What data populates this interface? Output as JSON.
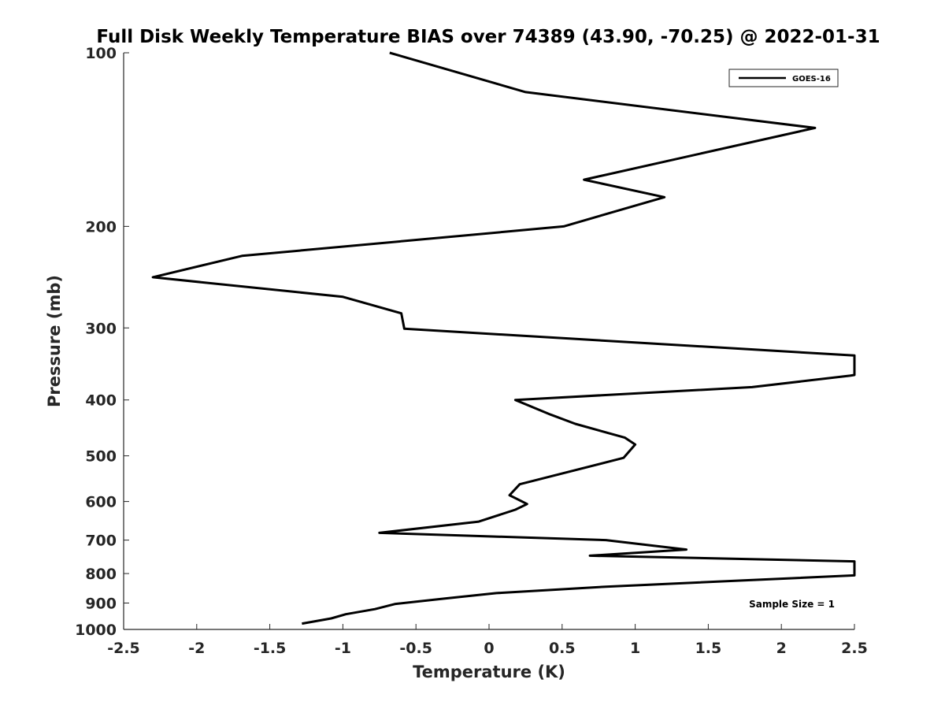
{
  "chart_data": {
    "type": "line",
    "title": "Full Disk Weekly Temperature BIAS over 74389 (43.90, -70.25) @ 2022-01-31",
    "xlabel": "Temperature (K)",
    "ylabel": "Pressure (mb)",
    "xlim": [
      -2.5,
      2.5
    ],
    "ylim": [
      1000,
      100
    ],
    "y_scale": "log",
    "y_reversed": true,
    "grid": false,
    "legend_position": "top-right",
    "x_ticks": [
      -2.5,
      -2,
      -1.5,
      -1,
      -0.5,
      0,
      0.5,
      1,
      1.5,
      2,
      2.5
    ],
    "x_tick_labels": [
      "-2.5",
      "-2",
      "-1.5",
      "-1",
      "-0.5",
      "0",
      "0.5",
      "1",
      "1.5",
      "2",
      "2.5"
    ],
    "y_ticks": [
      100,
      200,
      300,
      400,
      500,
      600,
      700,
      800,
      900,
      1000
    ],
    "y_tick_labels": [
      "100",
      "200",
      "300",
      "400",
      "500",
      "600",
      "700",
      "800",
      "900",
      "1000"
    ],
    "series": [
      {
        "name": "GOES-16",
        "color": "#000000",
        "points": [
          [
            -0.68,
            100
          ],
          [
            0.25,
            117
          ],
          [
            2.23,
            135
          ],
          [
            0.65,
            166
          ],
          [
            1.2,
            178
          ],
          [
            0.51,
            200
          ],
          [
            -1.69,
            225
          ],
          [
            -2.3,
            245
          ],
          [
            -1.0,
            265
          ],
          [
            -0.6,
            283
          ],
          [
            -0.58,
            301
          ],
          [
            2.5,
            335
          ],
          [
            2.5,
            362
          ],
          [
            2.47,
            363
          ],
          [
            1.8,
            380
          ],
          [
            0.18,
            400
          ],
          [
            0.42,
            424
          ],
          [
            0.59,
            440
          ],
          [
            0.93,
            465
          ],
          [
            1.0,
            478
          ],
          [
            0.92,
            504
          ],
          [
            0.21,
            560
          ],
          [
            0.14,
            585
          ],
          [
            0.26,
            606
          ],
          [
            0.18,
            620
          ],
          [
            -0.07,
            650
          ],
          [
            -0.75,
            680
          ],
          [
            0.8,
            700
          ],
          [
            1.35,
            727
          ],
          [
            0.69,
            745
          ],
          [
            2.5,
            762
          ],
          [
            2.5,
            806
          ],
          [
            0.8,
            843
          ],
          [
            0.05,
            865
          ],
          [
            -0.27,
            882
          ],
          [
            -0.64,
            903
          ],
          [
            -0.78,
            922
          ],
          [
            -0.98,
            941
          ],
          [
            -1.08,
            957
          ],
          [
            -1.28,
            977
          ]
        ]
      }
    ],
    "annotations": [
      {
        "text": "Sample Size = 1",
        "position": "bottom-right"
      }
    ]
  }
}
